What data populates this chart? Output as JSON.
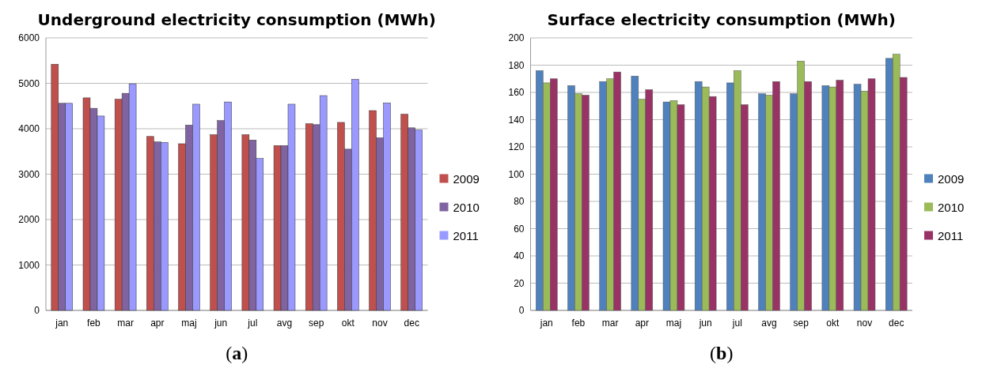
{
  "chart_data": [
    {
      "type": "bar",
      "title": "Underground electricity consumption (MWh)",
      "annotations": [
        "(a)"
      ],
      "categories": [
        "jan",
        "feb",
        "mar",
        "apr",
        "maj",
        "jun",
        "jul",
        "avg",
        "sep",
        "okt",
        "nov",
        "dec"
      ],
      "series": [
        {
          "name": "2009",
          "color": "#c0504d",
          "values": [
            5420,
            4680,
            4650,
            3830,
            3670,
            3870,
            3870,
            3630,
            4110,
            4140,
            4400,
            4320
          ]
        },
        {
          "name": "2010",
          "color": "#8064a2",
          "values": [
            4560,
            4450,
            4780,
            3710,
            4080,
            4180,
            3750,
            3630,
            4090,
            3550,
            3800,
            4020
          ]
        },
        {
          "name": "2011",
          "color": "#9999ff",
          "values": [
            4560,
            4280,
            4990,
            3700,
            4540,
            4590,
            3345,
            4540,
            4730,
            5090,
            4570,
            3970
          ]
        }
      ],
      "ylim": [
        0,
        6000
      ],
      "yticks": [
        0,
        1000,
        2000,
        3000,
        4000,
        5000,
        6000
      ],
      "grid": "y",
      "legend": "right"
    },
    {
      "type": "bar",
      "title": "Surface electricity consumption (MWh)",
      "annotations": [
        "(b)"
      ],
      "categories": [
        "jan",
        "feb",
        "mar",
        "apr",
        "maj",
        "jun",
        "jul",
        "avg",
        "sep",
        "okt",
        "nov",
        "dec"
      ],
      "series": [
        {
          "name": "2009",
          "color": "#4f81bd",
          "values": [
            176,
            165,
            168,
            172,
            153,
            168,
            167,
            159,
            159,
            165,
            166,
            185
          ]
        },
        {
          "name": "2010",
          "color": "#9bbb59",
          "values": [
            167,
            159,
            170,
            155,
            154,
            164,
            176,
            158,
            183,
            164,
            161,
            188
          ]
        },
        {
          "name": "2011",
          "color": "#993366",
          "values": [
            170,
            158,
            175,
            162,
            151,
            157,
            151,
            168,
            168,
            169,
            170,
            171
          ]
        }
      ],
      "ylim": [
        0,
        200
      ],
      "yticks": [
        0,
        20,
        40,
        60,
        80,
        100,
        120,
        140,
        160,
        180,
        200
      ],
      "grid": "y",
      "legend": "right"
    }
  ]
}
